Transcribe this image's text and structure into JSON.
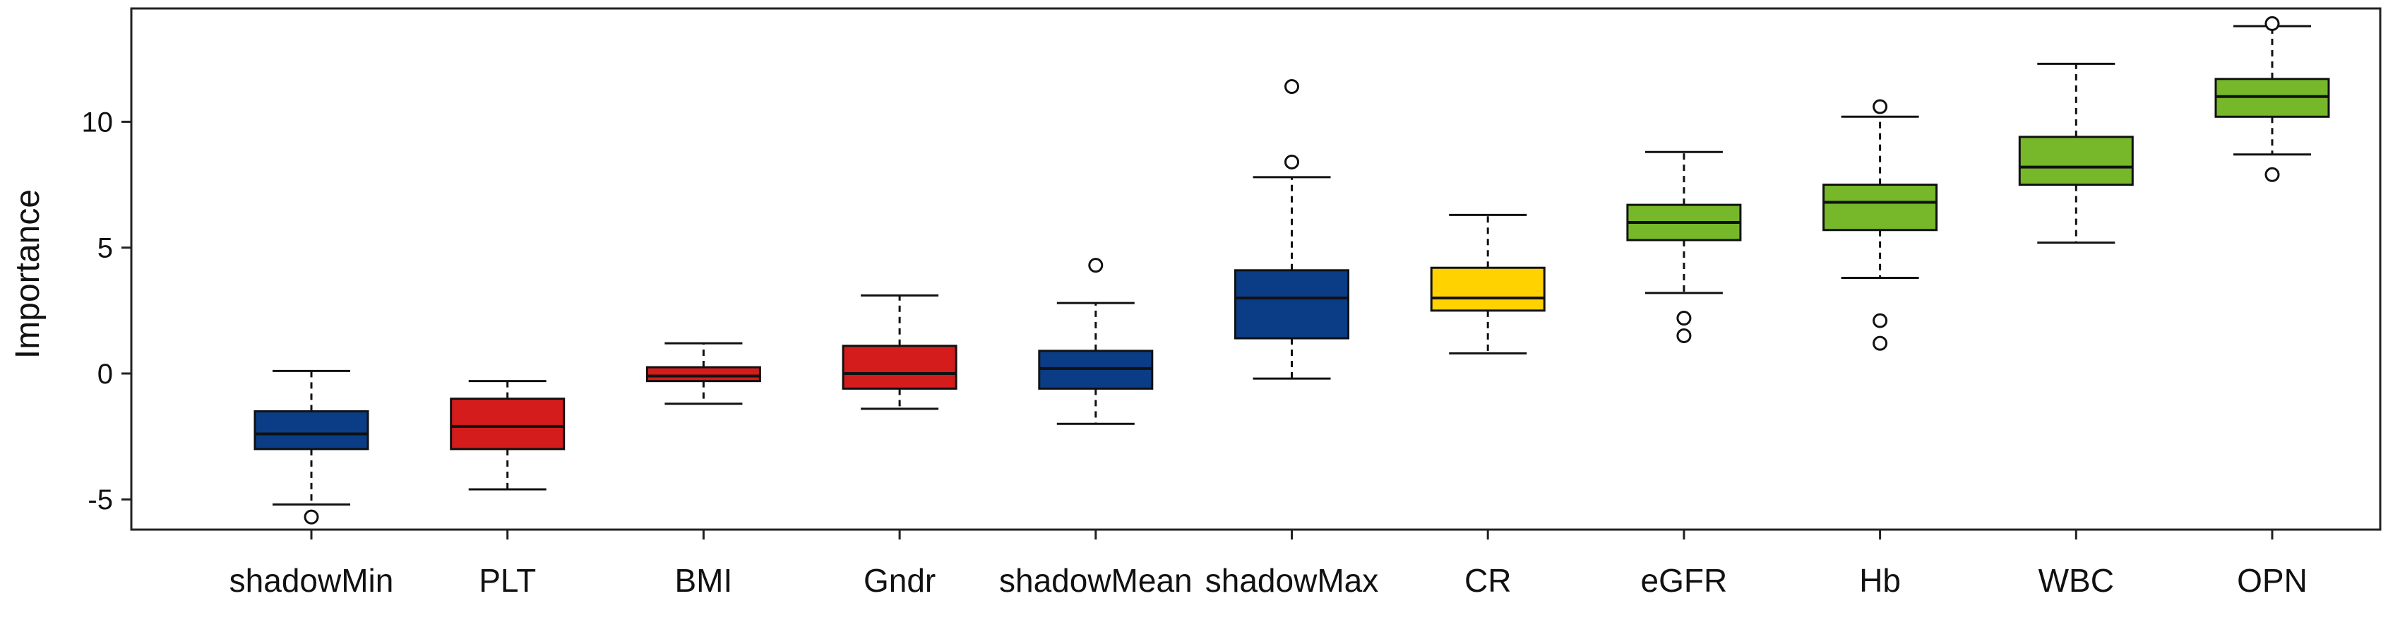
{
  "chart_data": {
    "type": "boxplot",
    "ylabel": "Importance",
    "xlabel": "",
    "ylim": [
      -6.2,
      14.5
    ],
    "yticks": [
      -5,
      0,
      5,
      10
    ],
    "ytick_labels": [
      "-5",
      "0",
      "5",
      "10"
    ],
    "grid": false,
    "legend": "none",
    "colors": {
      "shadow": "#0b3d86",
      "rejected": "#d41c1c",
      "tentative": "#ffd200",
      "confirmed": "#76b82a"
    },
    "boxes": [
      {
        "label": "shadowMin",
        "color": "#0b3d86",
        "whisker_low": -5.2,
        "q1": -3.0,
        "median": -2.4,
        "q3": -1.5,
        "whisker_high": 0.1,
        "outliers": [
          -5.7
        ]
      },
      {
        "label": "PLT",
        "color": "#d41c1c",
        "whisker_low": -4.6,
        "q1": -3.0,
        "median": -2.1,
        "q3": -1.0,
        "whisker_high": -0.3,
        "outliers": []
      },
      {
        "label": "BMI",
        "color": "#d41c1c",
        "whisker_low": -1.2,
        "q1": -0.3,
        "median": -0.1,
        "q3": 0.25,
        "whisker_high": 1.2,
        "outliers": []
      },
      {
        "label": "Gndr",
        "color": "#d41c1c",
        "whisker_low": -1.4,
        "q1": -0.6,
        "median": 0.0,
        "q3": 1.1,
        "whisker_high": 3.1,
        "outliers": []
      },
      {
        "label": "shadowMean",
        "color": "#0b3d86",
        "whisker_low": -2.0,
        "q1": -0.6,
        "median": 0.2,
        "q3": 0.9,
        "whisker_high": 2.8,
        "outliers": [
          4.3
        ]
      },
      {
        "label": "shadowMax",
        "color": "#0b3d86",
        "whisker_low": -0.2,
        "q1": 1.4,
        "median": 3.0,
        "q3": 4.1,
        "whisker_high": 7.8,
        "outliers": [
          8.4,
          11.4
        ]
      },
      {
        "label": "CR",
        "color": "#ffd200",
        "whisker_low": 0.8,
        "q1": 2.5,
        "median": 3.0,
        "q3": 4.2,
        "whisker_high": 6.3,
        "outliers": []
      },
      {
        "label": "eGFR",
        "color": "#76b82a",
        "whisker_low": 3.2,
        "q1": 5.3,
        "median": 6.0,
        "q3": 6.7,
        "whisker_high": 8.8,
        "outliers": [
          1.5,
          2.2
        ]
      },
      {
        "label": "Hb",
        "color": "#76b82a",
        "whisker_low": 3.8,
        "q1": 5.7,
        "median": 6.8,
        "q3": 7.5,
        "whisker_high": 10.2,
        "outliers": [
          1.2,
          2.1,
          10.6
        ]
      },
      {
        "label": "WBC",
        "color": "#76b82a",
        "whisker_low": 5.2,
        "q1": 7.5,
        "median": 8.2,
        "q3": 9.4,
        "whisker_high": 12.3,
        "outliers": []
      },
      {
        "label": "OPN",
        "color": "#76b82a",
        "whisker_low": 8.7,
        "q1": 10.2,
        "median": 11.0,
        "q3": 11.7,
        "whisker_high": 13.8,
        "outliers": [
          7.9,
          13.9
        ]
      }
    ]
  }
}
